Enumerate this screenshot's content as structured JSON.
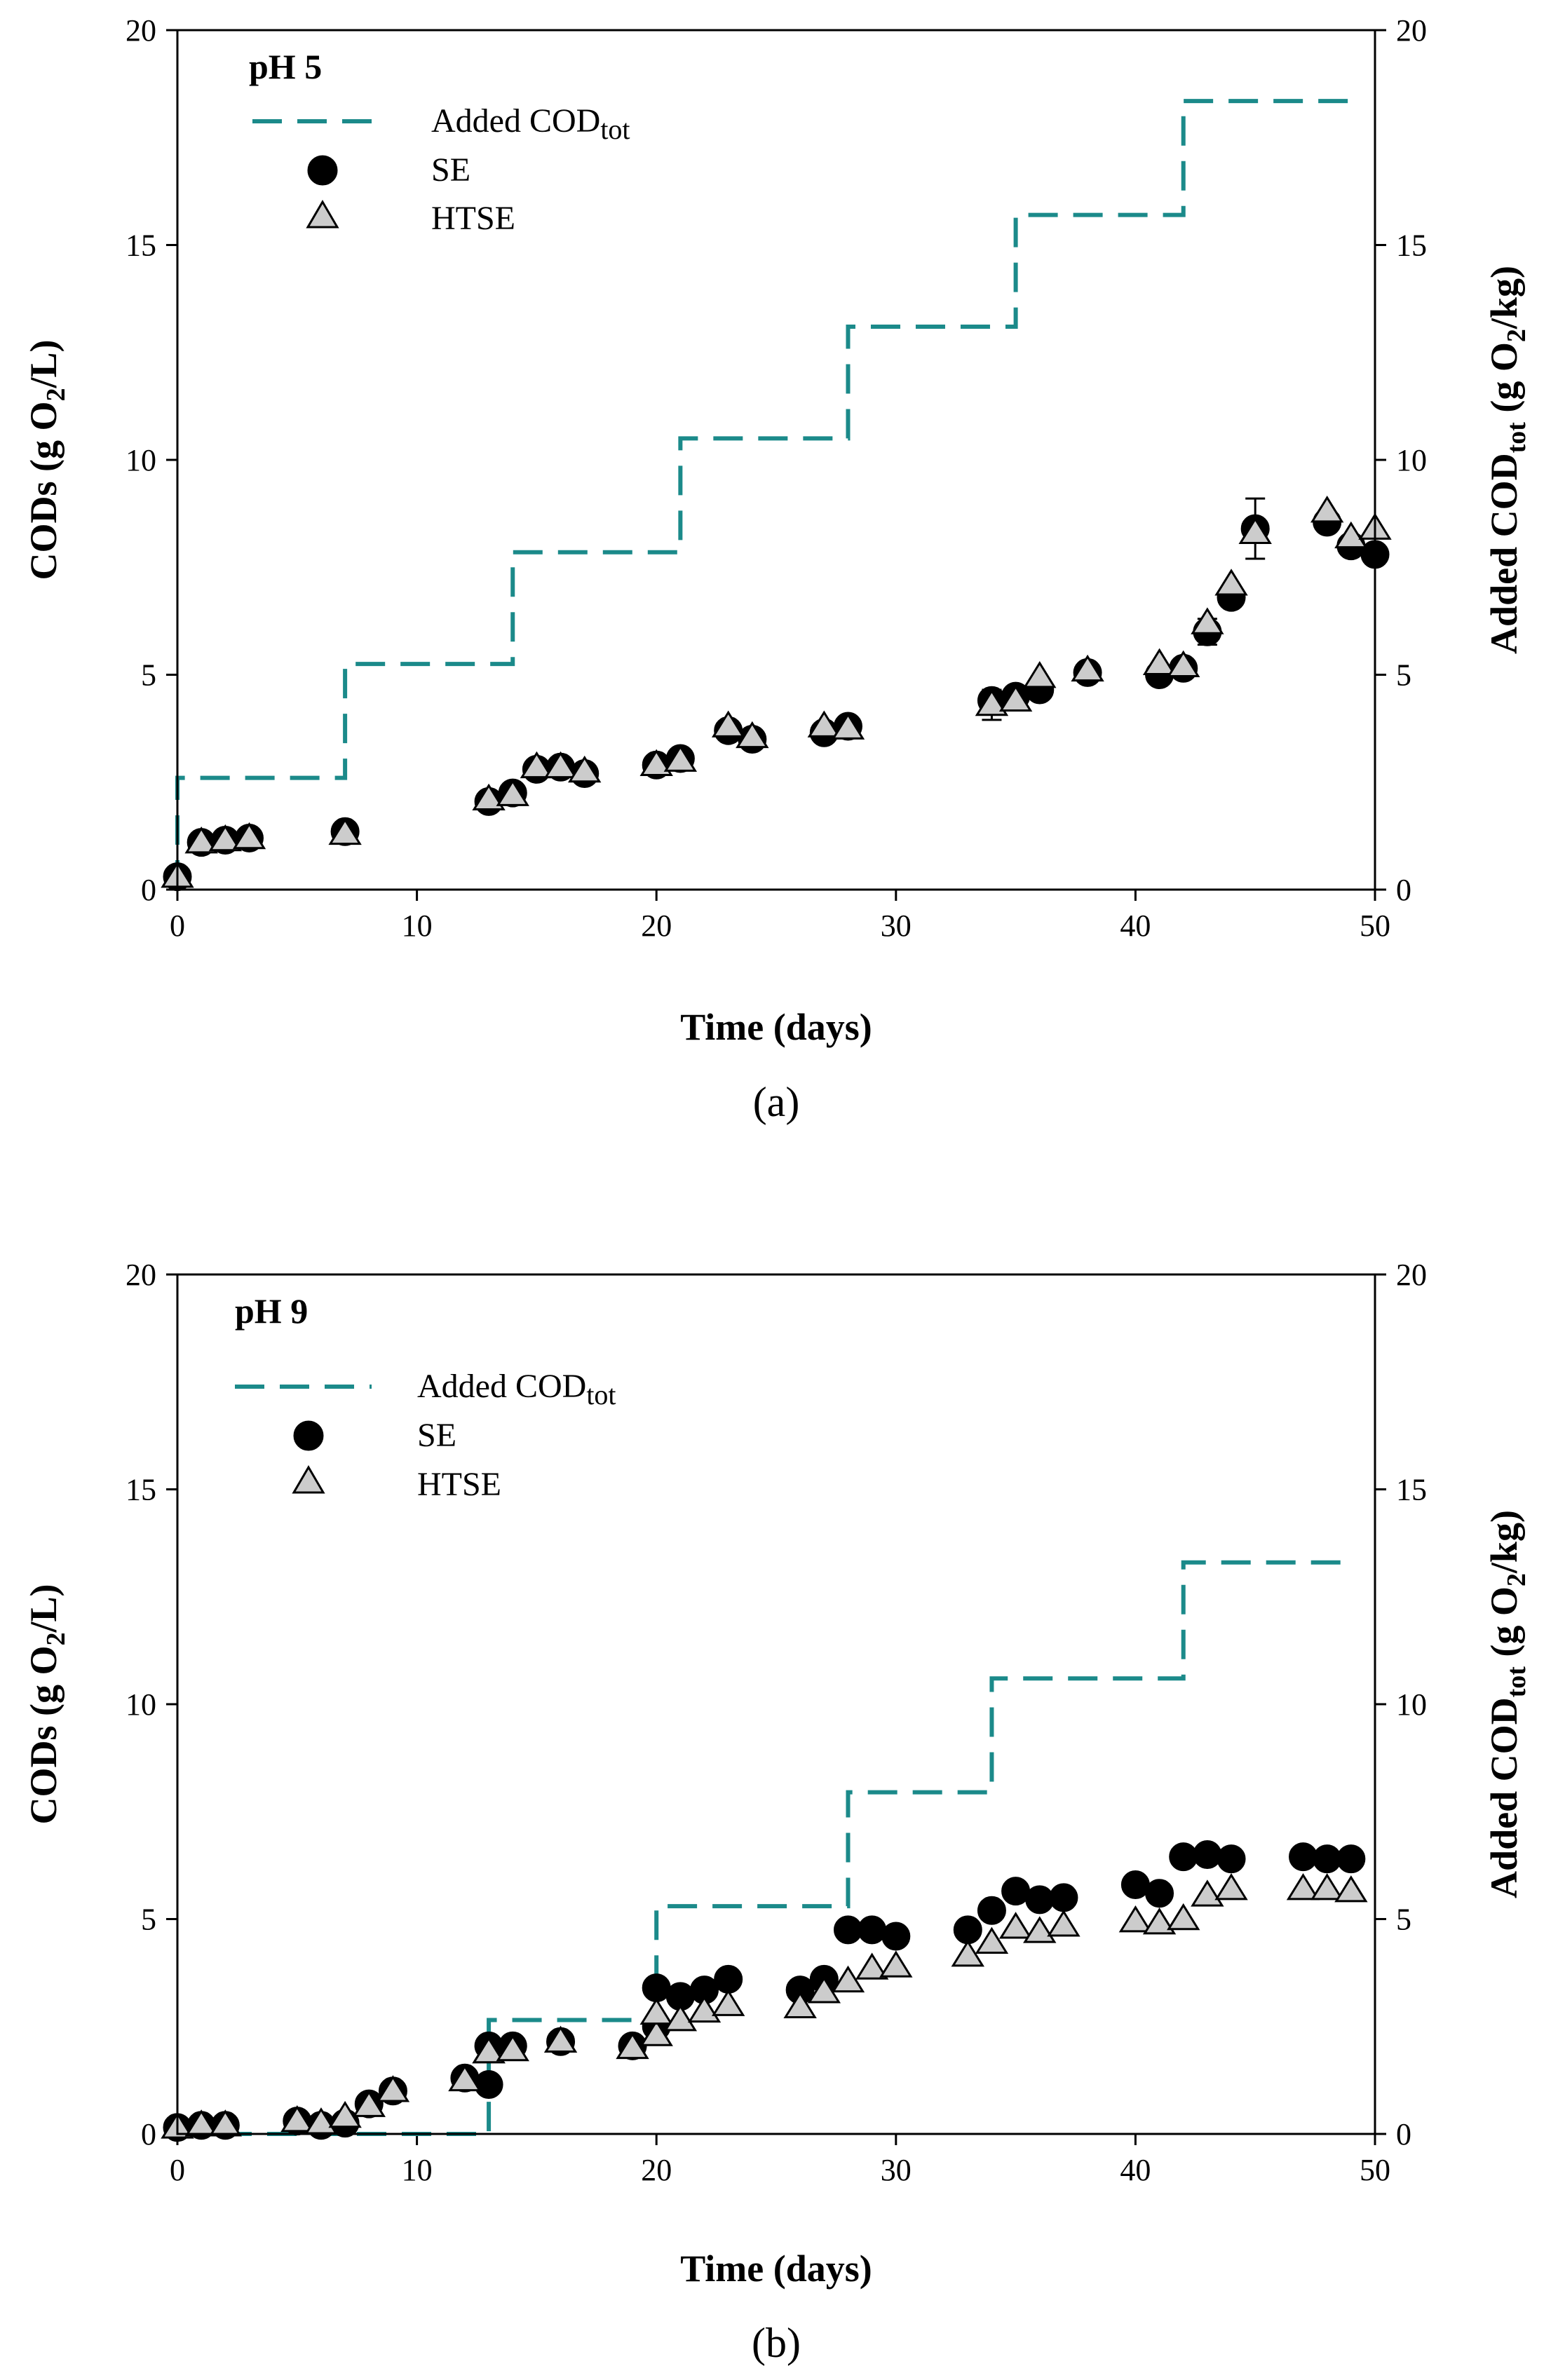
{
  "chart_data": [
    {
      "type": "scatter",
      "panel_label": "(a)",
      "condition_label": "pH 5",
      "xlabel": "Time (days)",
      "ylabel": "CODs (g O2/L)",
      "ylabel_right": "Added CODtot (g O2/kg)",
      "xlim": [
        0,
        50
      ],
      "ylim": [
        0,
        20
      ],
      "ylim_right": [
        0,
        20
      ],
      "xticks": [
        "0",
        "10",
        "20",
        "30",
        "40",
        "50"
      ],
      "yticks": [
        "0",
        "5",
        "10",
        "15",
        "20"
      ],
      "yticks_right": [
        "0",
        "5",
        "10",
        "15",
        "20"
      ],
      "legend_position": "top-left",
      "legend": {
        "added": "Added COD",
        "added_sub": "tot",
        "se": "SE",
        "htse": "HTSE"
      },
      "series": [
        {
          "name": "SE",
          "marker": "circle",
          "color": "#000000",
          "x": [
            0,
            1,
            2,
            3,
            7,
            13,
            14,
            15,
            16,
            17,
            20,
            21,
            23,
            24,
            27,
            28,
            34,
            35,
            36,
            38,
            41,
            42,
            43,
            44,
            45,
            48,
            49,
            50
          ],
          "y": [
            0.3,
            1.1,
            1.15,
            1.2,
            1.35,
            2.05,
            2.25,
            2.8,
            2.85,
            2.7,
            2.9,
            3.05,
            3.7,
            3.5,
            3.65,
            3.8,
            4.4,
            4.5,
            4.65,
            5.05,
            5.0,
            5.15,
            6.0,
            6.8,
            8.4,
            8.55,
            8.0,
            7.8
          ],
          "error": [
            0,
            0,
            0,
            0,
            0,
            0,
            0,
            0,
            0,
            0,
            0,
            0,
            0,
            0,
            0,
            0,
            0,
            0,
            0,
            0,
            0,
            0,
            0.3,
            0,
            0.7,
            0,
            0.2,
            0.2
          ]
        },
        {
          "name": "HTSE",
          "marker": "triangle",
          "color": "#cccccc",
          "x": [
            0,
            1,
            2,
            3,
            7,
            13,
            14,
            15,
            16,
            17,
            20,
            21,
            23,
            24,
            27,
            28,
            34,
            35,
            36,
            38,
            41,
            42,
            43,
            44,
            45,
            48,
            49,
            50
          ],
          "y": [
            0.3,
            1.1,
            1.15,
            1.2,
            1.3,
            2.1,
            2.2,
            2.85,
            2.85,
            2.75,
            2.9,
            3.0,
            3.8,
            3.55,
            3.8,
            3.75,
            4.3,
            4.4,
            4.95,
            5.1,
            5.25,
            5.2,
            6.2,
            7.1,
            8.3,
            8.8,
            8.2,
            8.4
          ],
          "error": [
            0,
            0,
            0,
            0,
            0,
            0,
            0,
            0,
            0,
            0,
            0,
            0,
            0,
            0,
            0,
            0,
            0.35,
            0,
            0,
            0,
            0,
            0,
            0,
            0,
            0,
            0,
            0,
            0
          ]
        },
        {
          "name": "Added CODtot",
          "axis": "right",
          "style": "dashed-step",
          "color": "#1b8a8a",
          "x": [
            0,
            0,
            7,
            7,
            14,
            14,
            21,
            21,
            28,
            28,
            35,
            35,
            42,
            42,
            49.5
          ],
          "y": [
            0,
            2.6,
            2.6,
            5.25,
            5.25,
            7.85,
            7.85,
            10.5,
            10.5,
            13.1,
            13.1,
            15.7,
            15.7,
            18.35,
            18.35
          ]
        }
      ]
    },
    {
      "type": "scatter",
      "panel_label": "(b)",
      "condition_label": "pH 9",
      "xlabel": "Time (days)",
      "ylabel": "CODs (g O2/L)",
      "ylabel_right": "Added CODtot (g O2/kg)",
      "xlim": [
        0,
        50
      ],
      "ylim": [
        0,
        20
      ],
      "ylim_right": [
        0,
        20
      ],
      "xticks": [
        "0",
        "10",
        "20",
        "30",
        "40",
        "50"
      ],
      "yticks": [
        "0",
        "5",
        "10",
        "15",
        "20"
      ],
      "yticks_right": [
        "0",
        "5",
        "10",
        "15",
        "20"
      ],
      "legend_position": "top-left",
      "legend": {
        "added": "Added COD",
        "added_sub": "tot",
        "se": "SE",
        "htse": "HTSE"
      },
      "series": [
        {
          "name": "SE",
          "marker": "circle",
          "color": "#000000",
          "x": [
            0,
            1,
            2,
            5,
            6,
            7,
            8,
            9,
            12,
            13,
            13,
            14,
            16,
            19,
            20,
            20,
            21,
            22,
            23,
            26,
            27,
            28,
            29,
            30,
            33,
            34,
            35,
            36,
            37,
            40,
            41,
            42,
            43,
            44,
            47,
            48,
            49
          ],
          "y": [
            0.15,
            0.2,
            0.2,
            0.3,
            0.2,
            0.25,
            0.7,
            1.0,
            1.3,
            1.15,
            2.05,
            2.05,
            2.15,
            2.05,
            2.5,
            3.4,
            3.2,
            3.35,
            3.6,
            3.35,
            3.6,
            4.75,
            4.75,
            4.6,
            4.75,
            5.2,
            5.65,
            5.45,
            5.5,
            5.8,
            5.6,
            6.45,
            6.5,
            6.4,
            6.45,
            6.4,
            6.4
          ]
        },
        {
          "name": "HTSE",
          "marker": "triangle",
          "color": "#cccccc",
          "x": [
            0,
            1,
            2,
            5,
            6,
            7,
            8,
            9,
            12,
            13,
            13,
            14,
            16,
            19,
            20,
            20,
            21,
            22,
            23,
            26,
            27,
            28,
            29,
            30,
            33,
            34,
            35,
            36,
            37,
            40,
            41,
            42,
            43,
            44,
            47,
            48,
            49
          ],
          "y": [
            0.15,
            0.2,
            0.2,
            0.3,
            0.25,
            0.4,
            0.65,
            1.0,
            1.25,
            1.9,
            1.9,
            1.95,
            2.15,
            2.0,
            2.3,
            2.8,
            2.65,
            2.85,
            3.0,
            2.95,
            3.3,
            3.55,
            3.85,
            3.9,
            4.15,
            4.45,
            4.8,
            4.7,
            4.85,
            4.95,
            4.9,
            5.0,
            5.55,
            5.7,
            5.7,
            5.7,
            5.65
          ]
        },
        {
          "name": "Added CODtot",
          "axis": "right",
          "style": "dashed-step",
          "color": "#1b8a8a",
          "x": [
            0,
            13,
            13,
            20,
            20,
            28,
            28,
            34,
            34,
            42,
            42,
            49
          ],
          "y": [
            0,
            0,
            2.65,
            2.65,
            5.3,
            5.3,
            7.95,
            7.95,
            10.6,
            10.6,
            13.3,
            13.3
          ]
        }
      ]
    }
  ]
}
